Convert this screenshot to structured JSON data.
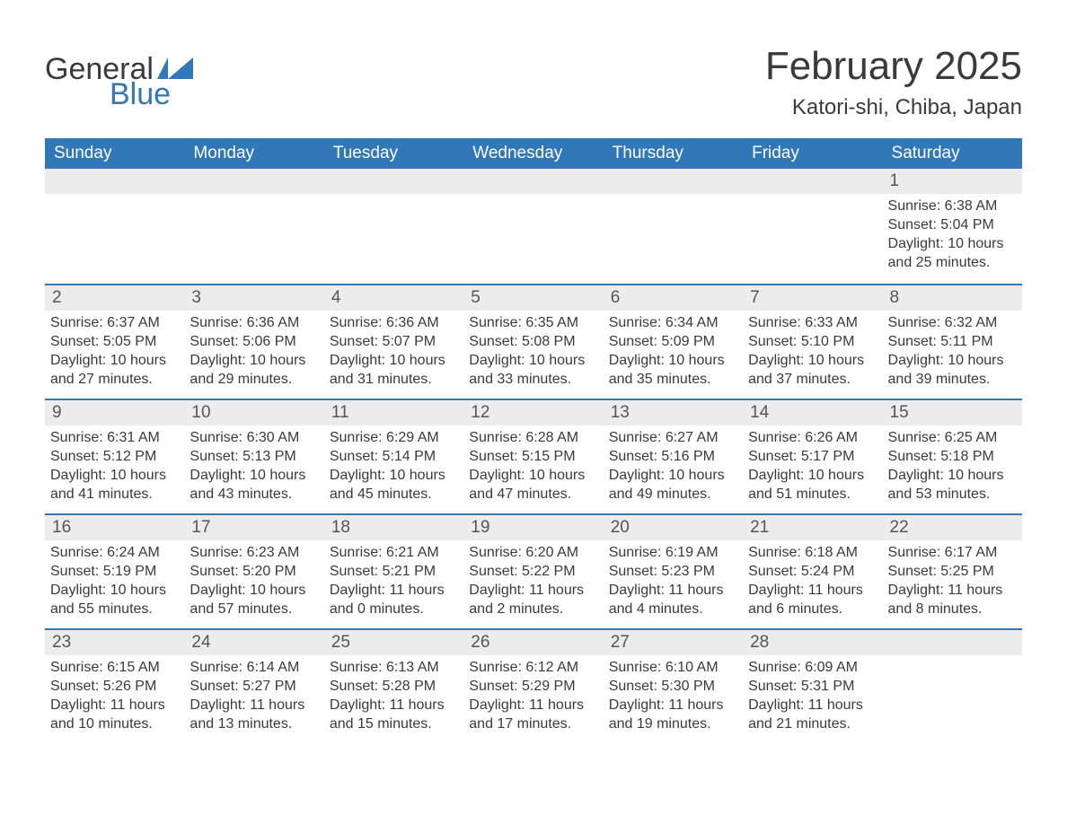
{
  "brand": {
    "part1": "General",
    "part2": "Blue"
  },
  "colors": {
    "header_bg": "#3178b8",
    "header_text": "#ffffff",
    "body_text": "#3a3a3a",
    "daynum_bg": "#ececec",
    "daynum_text": "#555555",
    "rule": "#3178b8",
    "background": "#ffffff"
  },
  "title": "February 2025",
  "location": "Katori-shi, Chiba, Japan",
  "day_headers": [
    "Sunday",
    "Monday",
    "Tuesday",
    "Wednesday",
    "Thursday",
    "Friday",
    "Saturday"
  ],
  "weeks": [
    [
      null,
      null,
      null,
      null,
      null,
      null,
      {
        "n": "1",
        "sunrise": "Sunrise: 6:38 AM",
        "sunset": "Sunset: 5:04 PM",
        "day1": "Daylight: 10 hours",
        "day2": "and 25 minutes."
      }
    ],
    [
      {
        "n": "2",
        "sunrise": "Sunrise: 6:37 AM",
        "sunset": "Sunset: 5:05 PM",
        "day1": "Daylight: 10 hours",
        "day2": "and 27 minutes."
      },
      {
        "n": "3",
        "sunrise": "Sunrise: 6:36 AM",
        "sunset": "Sunset: 5:06 PM",
        "day1": "Daylight: 10 hours",
        "day2": "and 29 minutes."
      },
      {
        "n": "4",
        "sunrise": "Sunrise: 6:36 AM",
        "sunset": "Sunset: 5:07 PM",
        "day1": "Daylight: 10 hours",
        "day2": "and 31 minutes."
      },
      {
        "n": "5",
        "sunrise": "Sunrise: 6:35 AM",
        "sunset": "Sunset: 5:08 PM",
        "day1": "Daylight: 10 hours",
        "day2": "and 33 minutes."
      },
      {
        "n": "6",
        "sunrise": "Sunrise: 6:34 AM",
        "sunset": "Sunset: 5:09 PM",
        "day1": "Daylight: 10 hours",
        "day2": "and 35 minutes."
      },
      {
        "n": "7",
        "sunrise": "Sunrise: 6:33 AM",
        "sunset": "Sunset: 5:10 PM",
        "day1": "Daylight: 10 hours",
        "day2": "and 37 minutes."
      },
      {
        "n": "8",
        "sunrise": "Sunrise: 6:32 AM",
        "sunset": "Sunset: 5:11 PM",
        "day1": "Daylight: 10 hours",
        "day2": "and 39 minutes."
      }
    ],
    [
      {
        "n": "9",
        "sunrise": "Sunrise: 6:31 AM",
        "sunset": "Sunset: 5:12 PM",
        "day1": "Daylight: 10 hours",
        "day2": "and 41 minutes."
      },
      {
        "n": "10",
        "sunrise": "Sunrise: 6:30 AM",
        "sunset": "Sunset: 5:13 PM",
        "day1": "Daylight: 10 hours",
        "day2": "and 43 minutes."
      },
      {
        "n": "11",
        "sunrise": "Sunrise: 6:29 AM",
        "sunset": "Sunset: 5:14 PM",
        "day1": "Daylight: 10 hours",
        "day2": "and 45 minutes."
      },
      {
        "n": "12",
        "sunrise": "Sunrise: 6:28 AM",
        "sunset": "Sunset: 5:15 PM",
        "day1": "Daylight: 10 hours",
        "day2": "and 47 minutes."
      },
      {
        "n": "13",
        "sunrise": "Sunrise: 6:27 AM",
        "sunset": "Sunset: 5:16 PM",
        "day1": "Daylight: 10 hours",
        "day2": "and 49 minutes."
      },
      {
        "n": "14",
        "sunrise": "Sunrise: 6:26 AM",
        "sunset": "Sunset: 5:17 PM",
        "day1": "Daylight: 10 hours",
        "day2": "and 51 minutes."
      },
      {
        "n": "15",
        "sunrise": "Sunrise: 6:25 AM",
        "sunset": "Sunset: 5:18 PM",
        "day1": "Daylight: 10 hours",
        "day2": "and 53 minutes."
      }
    ],
    [
      {
        "n": "16",
        "sunrise": "Sunrise: 6:24 AM",
        "sunset": "Sunset: 5:19 PM",
        "day1": "Daylight: 10 hours",
        "day2": "and 55 minutes."
      },
      {
        "n": "17",
        "sunrise": "Sunrise: 6:23 AM",
        "sunset": "Sunset: 5:20 PM",
        "day1": "Daylight: 10 hours",
        "day2": "and 57 minutes."
      },
      {
        "n": "18",
        "sunrise": "Sunrise: 6:21 AM",
        "sunset": "Sunset: 5:21 PM",
        "day1": "Daylight: 11 hours",
        "day2": "and 0 minutes."
      },
      {
        "n": "19",
        "sunrise": "Sunrise: 6:20 AM",
        "sunset": "Sunset: 5:22 PM",
        "day1": "Daylight: 11 hours",
        "day2": "and 2 minutes."
      },
      {
        "n": "20",
        "sunrise": "Sunrise: 6:19 AM",
        "sunset": "Sunset: 5:23 PM",
        "day1": "Daylight: 11 hours",
        "day2": "and 4 minutes."
      },
      {
        "n": "21",
        "sunrise": "Sunrise: 6:18 AM",
        "sunset": "Sunset: 5:24 PM",
        "day1": "Daylight: 11 hours",
        "day2": "and 6 minutes."
      },
      {
        "n": "22",
        "sunrise": "Sunrise: 6:17 AM",
        "sunset": "Sunset: 5:25 PM",
        "day1": "Daylight: 11 hours",
        "day2": "and 8 minutes."
      }
    ],
    [
      {
        "n": "23",
        "sunrise": "Sunrise: 6:15 AM",
        "sunset": "Sunset: 5:26 PM",
        "day1": "Daylight: 11 hours",
        "day2": "and 10 minutes."
      },
      {
        "n": "24",
        "sunrise": "Sunrise: 6:14 AM",
        "sunset": "Sunset: 5:27 PM",
        "day1": "Daylight: 11 hours",
        "day2": "and 13 minutes."
      },
      {
        "n": "25",
        "sunrise": "Sunrise: 6:13 AM",
        "sunset": "Sunset: 5:28 PM",
        "day1": "Daylight: 11 hours",
        "day2": "and 15 minutes."
      },
      {
        "n": "26",
        "sunrise": "Sunrise: 6:12 AM",
        "sunset": "Sunset: 5:29 PM",
        "day1": "Daylight: 11 hours",
        "day2": "and 17 minutes."
      },
      {
        "n": "27",
        "sunrise": "Sunrise: 6:10 AM",
        "sunset": "Sunset: 5:30 PM",
        "day1": "Daylight: 11 hours",
        "day2": "and 19 minutes."
      },
      {
        "n": "28",
        "sunrise": "Sunrise: 6:09 AM",
        "sunset": "Sunset: 5:31 PM",
        "day1": "Daylight: 11 hours",
        "day2": "and 21 minutes."
      },
      null
    ]
  ]
}
